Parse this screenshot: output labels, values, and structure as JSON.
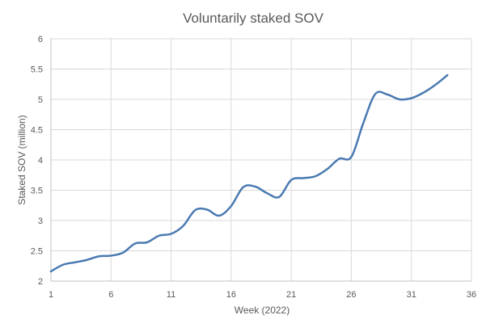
{
  "chart_data": {
    "type": "line",
    "title": "Voluntarily staked SOV",
    "xlabel": "Week (2022)",
    "ylabel": "Staked SOV (million)",
    "xlim": [
      1,
      36
    ],
    "ylim": [
      2,
      6
    ],
    "x_ticks": [
      1,
      6,
      11,
      16,
      21,
      26,
      31,
      36
    ],
    "y_ticks": [
      2,
      2.5,
      3,
      3.5,
      4,
      4.5,
      5,
      5.5,
      6
    ],
    "y_tick_labels": [
      "2",
      "2.5",
      "3",
      "3.5",
      "4",
      "4.5",
      "5",
      "5.5",
      "6"
    ],
    "grid": true,
    "legend": "none",
    "line_color": "#4a7ab2",
    "grid_color": "#d9d9d9",
    "series": [
      {
        "x": [
          1,
          2,
          3,
          4,
          5,
          6,
          7,
          8,
          9,
          10,
          11,
          12,
          13,
          14,
          15,
          16,
          17,
          18,
          19,
          20,
          21,
          22,
          23,
          24,
          25,
          26,
          27,
          28,
          29,
          30,
          31,
          32,
          33,
          34
        ],
        "values": [
          2.16,
          2.27,
          2.31,
          2.35,
          2.41,
          2.42,
          2.47,
          2.62,
          2.64,
          2.75,
          2.78,
          2.91,
          3.17,
          3.18,
          3.08,
          3.24,
          3.55,
          3.56,
          3.45,
          3.39,
          3.67,
          3.7,
          3.73,
          3.85,
          4.02,
          4.05,
          4.61,
          5.09,
          5.08,
          5.0,
          5.02,
          5.11,
          5.24,
          5.4
        ]
      }
    ]
  }
}
